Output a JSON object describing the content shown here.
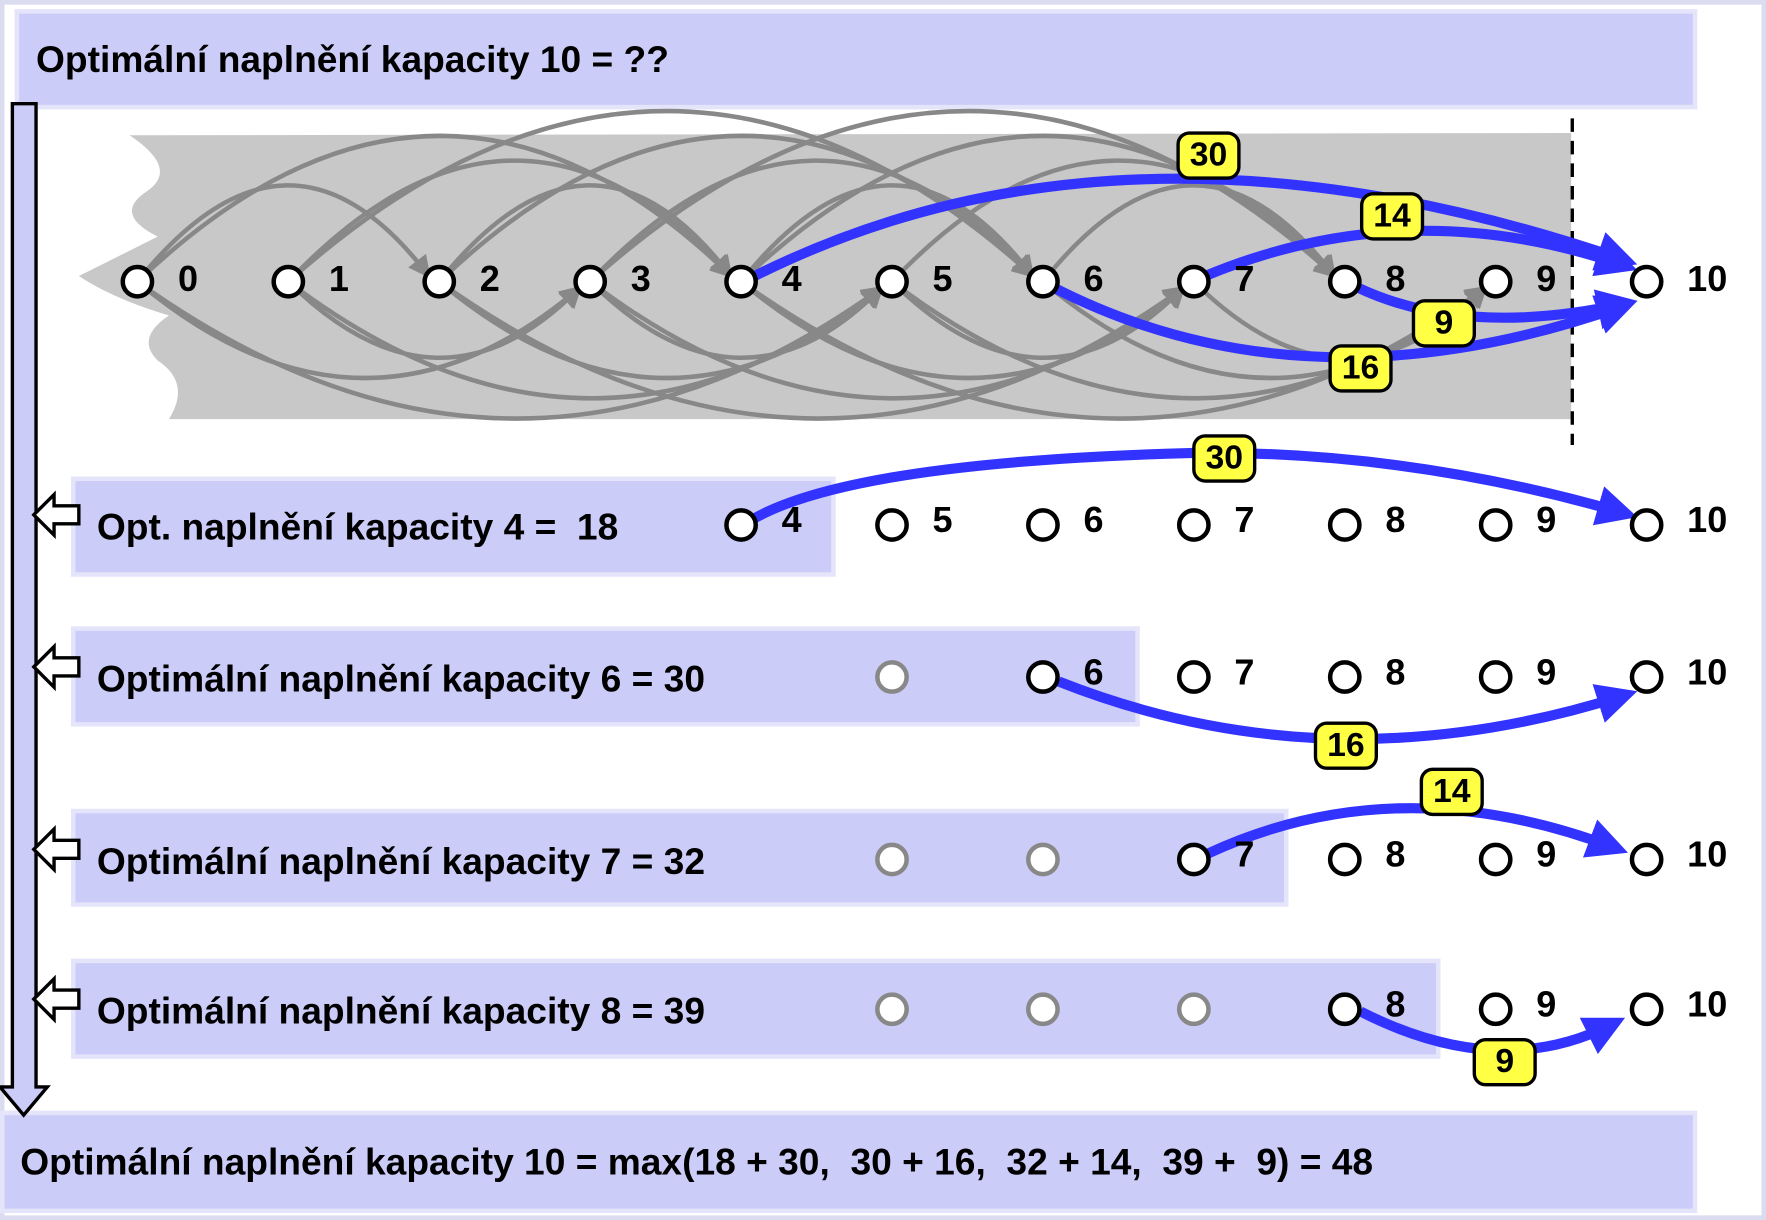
{
  "title": "Optimální naplnění kapacity 10 = ??",
  "top_nodes": [
    "0",
    "1",
    "2",
    "3",
    "4",
    "5",
    "6",
    "7",
    "8",
    "9",
    "10"
  ],
  "top_edges": [
    "30",
    "14",
    "9",
    "16"
  ],
  "rows": [
    {
      "label": "Opt. naplnění kapacity 4 =  18",
      "nodes": [
        "4",
        "5",
        "6",
        "7",
        "8",
        "9",
        "10"
      ],
      "edge": "30"
    },
    {
      "label": "Optimální naplnění kapacity 6 = 30",
      "nodes": [
        "6",
        "7",
        "8",
        "9",
        "10"
      ],
      "edge": "16"
    },
    {
      "label": "Optimální naplnění kapacity 7 = 32",
      "nodes": [
        "7",
        "8",
        "9",
        "10"
      ],
      "edge": "14"
    },
    {
      "label": "Optimální naplnění kapacity 8 = 39",
      "nodes": [
        "8",
        "9",
        "10"
      ],
      "edge": "9"
    }
  ],
  "result": "Optimální naplnění kapacity 10 = max(18 + 30,  30 + 16,  32 + 14,  39 +  9) = 48"
}
